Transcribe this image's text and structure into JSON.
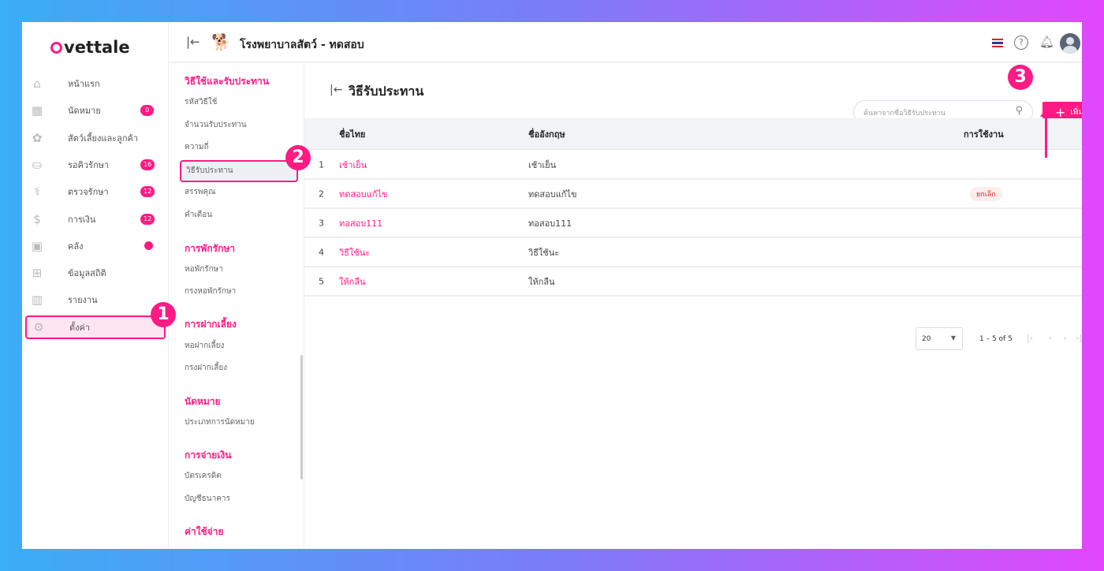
{
  "brand": {
    "logo": "vettale"
  },
  "header": {
    "title": "โรงพยาบาลสัตว์ - ทดสอบ",
    "flag_icon": "thai-flag-icon"
  },
  "sidebar": {
    "items": [
      {
        "label": "หน้าแรก",
        "icon": "home-icon"
      },
      {
        "label": "นัดหมาย",
        "icon": "calendar-icon",
        "badge": "0"
      },
      {
        "label": "สัตว์เลี้ยงและลูกค้า",
        "icon": "paw-icon"
      },
      {
        "label": "รอคิวรักษา",
        "icon": "sofa-icon",
        "badge": "16"
      },
      {
        "label": "ตรวจรักษา",
        "icon": "stethoscope-icon",
        "badge": "12"
      },
      {
        "label": "การเงิน",
        "icon": "money-hand-icon",
        "badge": "12"
      },
      {
        "label": "คลัง",
        "icon": "box-icon",
        "dot": true
      },
      {
        "label": "ข้อมูลสถิติ",
        "icon": "grid-icon"
      },
      {
        "label": "รายงาน",
        "icon": "bar-chart-icon"
      },
      {
        "label": "ตั้งค่า",
        "icon": "gear-icon",
        "active": true
      }
    ]
  },
  "submenu": {
    "s1": "วิธีใช้และรับประทาน",
    "s1_items": [
      "รหัสวิธีใช้",
      "จำนวนรับประทาน",
      "ความถี่",
      "วิธีรับประทาน",
      "สรรพคุณ",
      "คำเตือน"
    ],
    "s2": "การพักรักษา",
    "s2_items": [
      "หอพักรักษา",
      "กรงหอพักรักษา"
    ],
    "s3": "การฝากเลี้ยง",
    "s3_items": [
      "หอฝากเลี้ยง",
      "กรงฝากเลี้ยง"
    ],
    "s4": "นัดหมาย",
    "s4_items": [
      "ประเภทการนัดหมาย"
    ],
    "s5": "การจ่ายเงิน",
    "s5_items": [
      "บัตรเครดิต",
      "บัญชีธนาคาร"
    ],
    "s6": "ค่าใช้จ่าย"
  },
  "main": {
    "title": "วิธีรับประทาน",
    "search_placeholder": "ค้นหาจากชื่อวิธีรับประทาน",
    "add_label": "เพิ่ม",
    "columns": [
      "ชื่อไทย",
      "ชื่ออังกฤษ",
      "การใช้งาน"
    ],
    "rows": [
      {
        "no": "1",
        "th": "เช้าเย็น",
        "en": "เช้าเย็น",
        "status": ""
      },
      {
        "no": "2",
        "th": "ทดสอบแก้ไข",
        "en": "ทดสอบแก้ไข",
        "status": "ยกเลิก"
      },
      {
        "no": "3",
        "th": "ทอสอบ111",
        "en": "ทอสอบ111",
        "status": ""
      },
      {
        "no": "4",
        "th": "วิธีใช้นะ",
        "en": "วิธีใช้นะ",
        "status": ""
      },
      {
        "no": "5",
        "th": "ให้กลืน",
        "en": "ให้กลืน",
        "status": ""
      }
    ],
    "page_size": "20",
    "range": "1 – 5 of 5"
  },
  "annotations": [
    "1",
    "2",
    "3"
  ],
  "colors": {
    "accent": "#ff1a84"
  }
}
